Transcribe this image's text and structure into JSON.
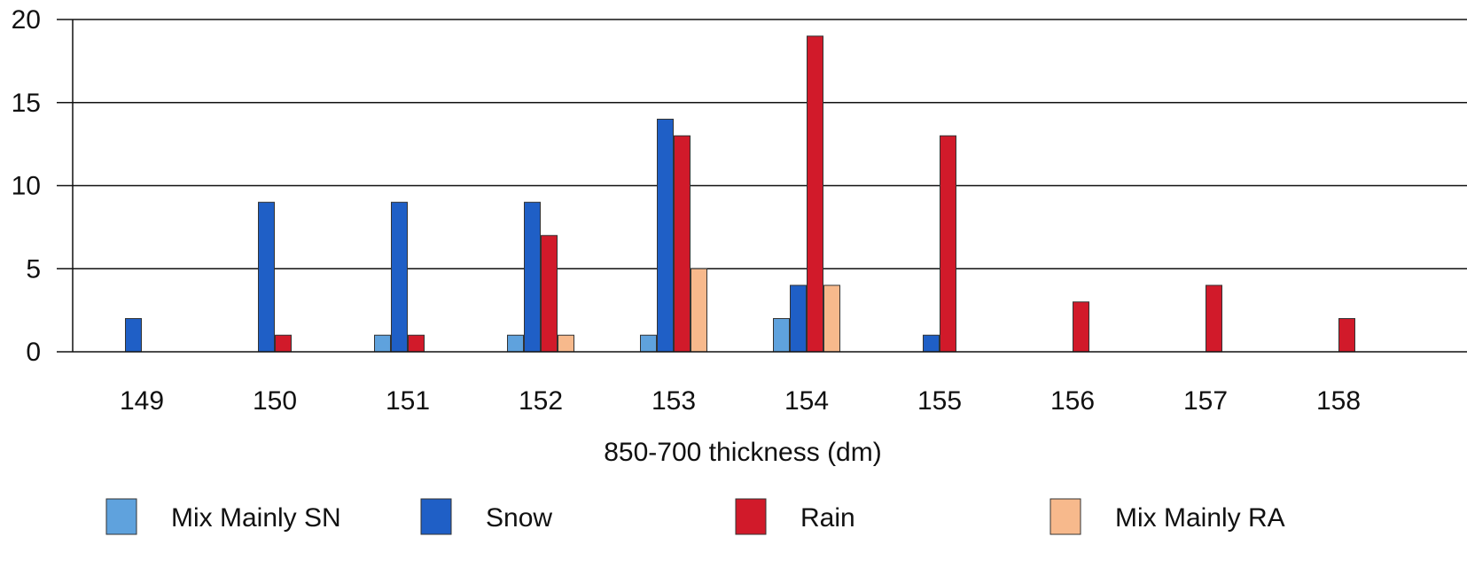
{
  "chart_data": {
    "type": "bar",
    "title": "",
    "xlabel": "850-700 thickness (dm)",
    "ylabel": "",
    "categories": [
      "149",
      "150",
      "151",
      "152",
      "153",
      "154",
      "155",
      "156",
      "157",
      "158"
    ],
    "ylim": [
      0,
      20
    ],
    "yticks": [
      "0",
      "5",
      "10",
      "15",
      "20"
    ],
    "grid": true,
    "legend_position": "bottom",
    "series": [
      {
        "name": "Mix Mainly SN",
        "color": "#5fa2dd",
        "values": [
          0,
          0,
          1,
          1,
          1,
          2,
          0,
          0,
          0,
          0
        ]
      },
      {
        "name": "Snow",
        "color": "#1f5fc6",
        "values": [
          2,
          9,
          9,
          9,
          14,
          4,
          1,
          0,
          0,
          0
        ]
      },
      {
        "name": "Rain",
        "color": "#d11a2a",
        "values": [
          0,
          1,
          1,
          7,
          13,
          19,
          13,
          3,
          4,
          2
        ]
      },
      {
        "name": "Mix Mainly RA",
        "color": "#f7b98c",
        "values": [
          0,
          0,
          0,
          1,
          5,
          4,
          0,
          0,
          0,
          0
        ]
      }
    ]
  }
}
